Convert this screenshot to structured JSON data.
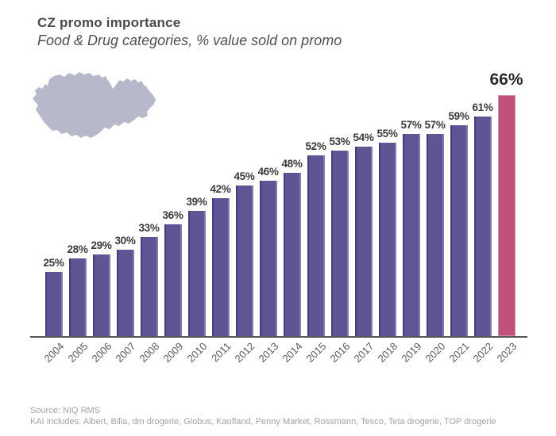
{
  "header": {
    "title": "CZ promo importance",
    "subtitle": "Food & Drug categories, % value sold on promo"
  },
  "graphics": {
    "map_icon": "czech-republic-silhouette",
    "map_color": "#b7b8ca"
  },
  "chart_data": {
    "type": "bar",
    "title": "CZ promo importance",
    "subtitle": "Food & Drug categories, % value sold on promo",
    "categories": [
      "2004",
      "2005",
      "2006",
      "2007",
      "2008",
      "2009",
      "2010",
      "2011",
      "2012",
      "2013",
      "2014",
      "2015",
      "2016",
      "2017",
      "2018",
      "2019",
      "2020",
      "2021",
      "2022",
      "2023"
    ],
    "values": [
      25,
      28,
      29,
      30,
      33,
      36,
      39,
      42,
      45,
      46,
      48,
      52,
      53,
      54,
      55,
      57,
      57,
      59,
      61,
      66
    ],
    "value_suffix": "%",
    "xlabel": "",
    "ylabel": "% value sold on promo",
    "ylim": [
      10,
      70
    ],
    "grid": false,
    "legend": "none",
    "highlight_index": 19,
    "bar_color": "#5f5494",
    "highlight_color": "#c0517c",
    "label_color": "#3a3a3a",
    "highlight_label_color": "#2a2a2a",
    "axis_color": "#565656",
    "tick_color": "#595959"
  },
  "footer": {
    "source": "Source: NIQ RMS",
    "coverage": "KAI includes: Albert, Billa, dm drogerie, Globus, Kaufland, Penny Market, Rossmann, Tesco, Teta drogerie, TOP drogerie"
  }
}
